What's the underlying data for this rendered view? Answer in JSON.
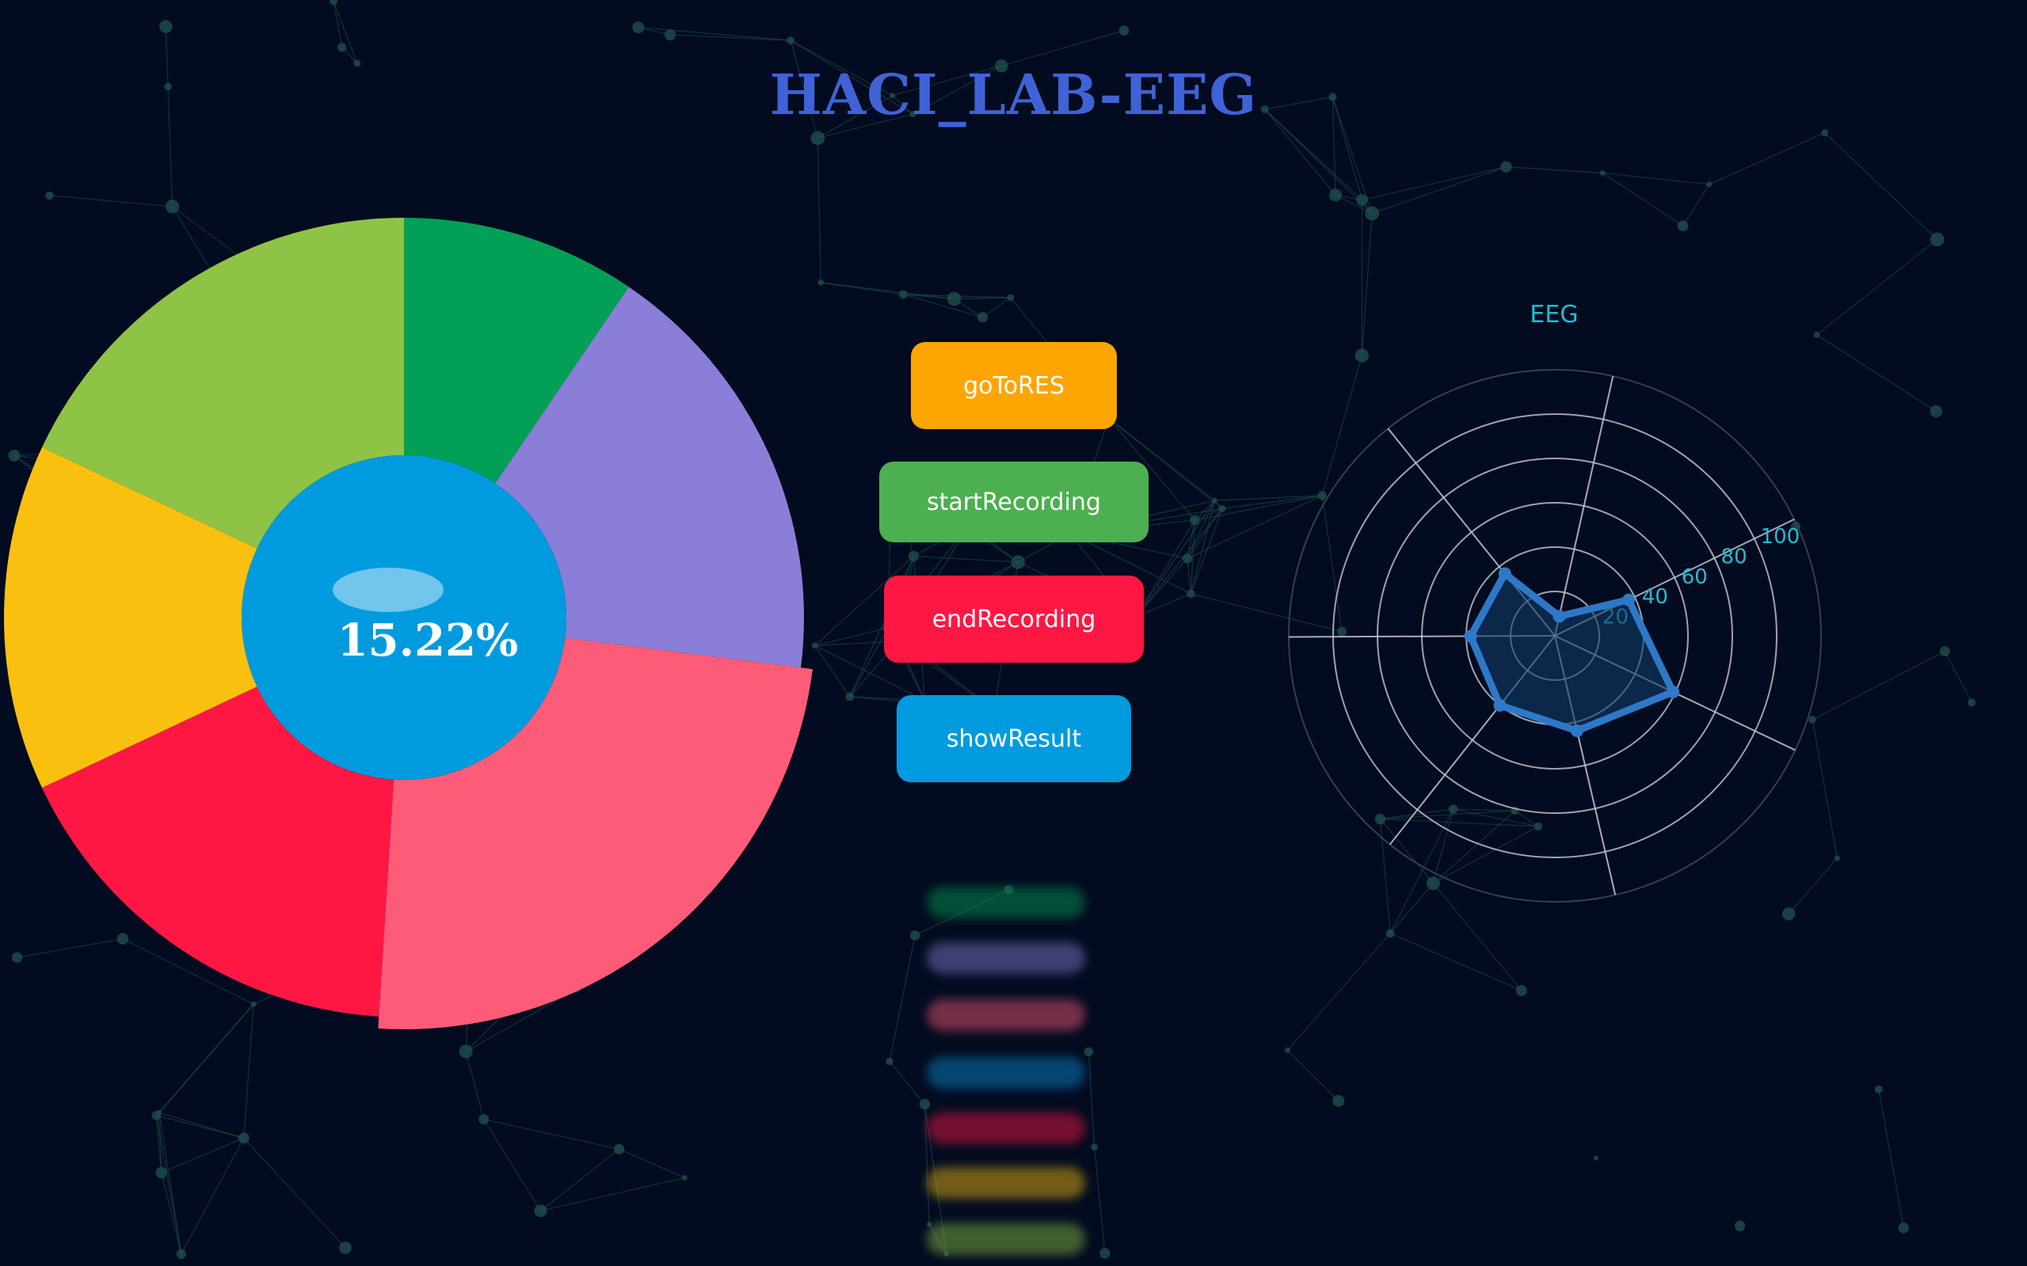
{
  "title": "HACI_LAB-EEG",
  "donut": {
    "center_label": "15.22%",
    "slices": [
      {
        "value": 9.5,
        "color": "#02a057"
      },
      {
        "value": 17.5,
        "color": "#8b7ed8"
      },
      {
        "value": 24.0,
        "color": "#fd5b78"
      },
      {
        "value": 17.0,
        "color": "#ff1744"
      },
      {
        "value": 14.0,
        "color": "#fac010"
      },
      {
        "value": 18.0,
        "color": "#8fc345"
      }
    ],
    "center_color": "#009bde"
  },
  "buttons": {
    "goToRES": "goToRES",
    "startRecording": "startRecording",
    "endRecording": "endRecording",
    "showResult": "showResult"
  },
  "colors": {
    "background": "#020b1f",
    "title": "#3f63d6",
    "goToRES": "#ffa502",
    "startRecording": "#4caf50",
    "endRecording": "#ff1744",
    "showResult": "#009bde",
    "radar_line": "#2d79c7",
    "radar_tick": "#22bcd0"
  },
  "legend_colors": [
    "#02a057",
    "#8b7ed8",
    "#fd5b78",
    "#0a8fd8",
    "#ff1744",
    "#fac010",
    "#8fc345"
  ],
  "chart_data": {
    "type": "radar",
    "title": "EEG",
    "axis_max": 120,
    "tick_labels": [
      "20",
      "40",
      "60",
      "80",
      "100"
    ],
    "indicators": [
      "",
      "",
      "",
      "",
      "",
      "",
      ""
    ],
    "series": [
      {
        "values": [
          9,
          37,
          59,
          44,
          40,
          38,
          36
        ]
      }
    ]
  }
}
